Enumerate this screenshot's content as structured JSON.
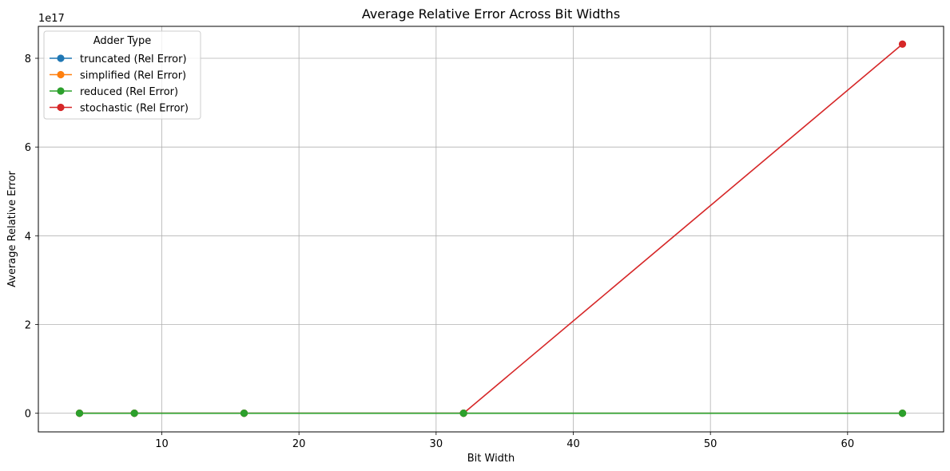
{
  "chart_data": {
    "type": "line",
    "title": "Average Relative Error Across Bit Widths",
    "xlabel": "Bit Width",
    "ylabel": "Average Relative Error",
    "y_offset_label": "1e17",
    "y_scale_factor": 1e+17,
    "x": [
      4,
      8,
      16,
      32,
      64
    ],
    "xlim": [
      1,
      67
    ],
    "ylim": [
      -0.42,
      8.72
    ],
    "xticks": [
      10,
      20,
      30,
      40,
      50,
      60
    ],
    "yticks": [
      0,
      2,
      4,
      6,
      8
    ],
    "grid": true,
    "legend": {
      "title": "Adder Type",
      "placement": "top-left"
    },
    "series": [
      {
        "name": "truncated (Rel Error)",
        "color": "#1f77b4",
        "values": [
          0,
          0,
          0,
          0,
          0
        ]
      },
      {
        "name": "simplified (Rel Error)",
        "color": "#ff7f0e",
        "values": [
          0,
          0,
          0,
          0,
          0
        ]
      },
      {
        "name": "reduced (Rel Error)",
        "color": "#2ca02c",
        "values": [
          0,
          0,
          0,
          0,
          0
        ]
      },
      {
        "name": "stochastic (Rel Error)",
        "color": "#d62728",
        "values": [
          0,
          0,
          0,
          0,
          8.32
        ]
      }
    ],
    "draw_order": [
      0,
      1,
      3,
      2
    ]
  }
}
